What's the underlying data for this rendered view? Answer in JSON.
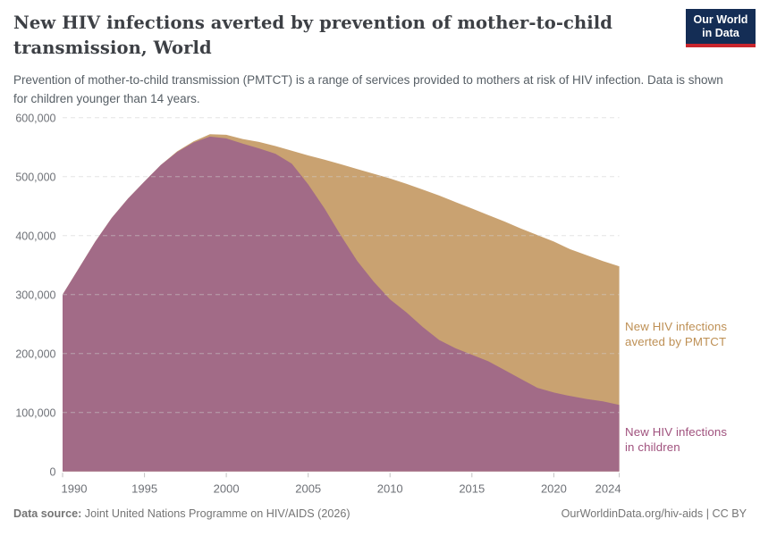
{
  "header": {
    "title_lines": [
      "New HIV infections averted by prevention of mother-to-child",
      "transmission, World"
    ],
    "subtitle": "Prevention of mother-to-child transmission (PMTCT) is a range of services provided to mothers at risk of HIV infection. Data is shown for children younger than 14 years.",
    "logo": {
      "line1": "Our World",
      "line2": "in Data"
    },
    "logo_colors": {
      "background": "#142d55",
      "stripe": "#c9252d"
    }
  },
  "chart_data": {
    "type": "area",
    "stacked": true,
    "grid": "dashed-horizontal",
    "xlabel": "",
    "ylabel": "",
    "ylim": [
      0,
      600000
    ],
    "ytick_step": 100000,
    "ytick_labels": [
      "0",
      "100,000",
      "200,000",
      "300,000",
      "400,000",
      "500,000",
      "600,000"
    ],
    "xticks": [
      1990,
      1995,
      2000,
      2005,
      2010,
      2015,
      2020,
      2024
    ],
    "x": [
      1990,
      1991,
      1992,
      1993,
      1994,
      1995,
      1996,
      1997,
      1998,
      1999,
      2000,
      2001,
      2002,
      2003,
      2004,
      2005,
      2006,
      2007,
      2008,
      2009,
      2010,
      2011,
      2012,
      2013,
      2014,
      2015,
      2016,
      2017,
      2018,
      2019,
      2020,
      2021,
      2022,
      2023,
      2024
    ],
    "series": [
      {
        "name": "New HIV infections in children",
        "label_lines": [
          "New HIV infections",
          "in children"
        ],
        "color": "#A26B87",
        "label_color": "#A0527E",
        "values": [
          300000,
          345000,
          390000,
          430000,
          463000,
          492000,
          520000,
          542000,
          558000,
          568000,
          565000,
          556000,
          548000,
          539000,
          522000,
          487000,
          446000,
          400000,
          357000,
          322000,
          292000,
          270000,
          245000,
          223000,
          209000,
          198000,
          187000,
          172000,
          157000,
          142000,
          134000,
          128000,
          123000,
          119000,
          113000
        ]
      },
      {
        "name": "New HIV infections averted by PMTCT",
        "label_lines": [
          "New HIV infections",
          "averted by PMTCT"
        ],
        "color": "#C9A271",
        "label_color": "#BE9055",
        "values": [
          0,
          0,
          0,
          0,
          0,
          0,
          0,
          1000,
          2000,
          4000,
          6000,
          8000,
          11000,
          13000,
          22000,
          49000,
          83000,
          121000,
          156000,
          183000,
          205000,
          218000,
          233000,
          245000,
          248000,
          248000,
          248000,
          252000,
          255000,
          259000,
          256000,
          249000,
          244000,
          238000,
          235000
        ]
      }
    ]
  },
  "footer": {
    "source_label": "Data source:",
    "source_text": " Joint United Nations Programme on HIV/AIDS (2026)",
    "credit": "OurWorldinData.org/hiv-aids | CC BY"
  }
}
